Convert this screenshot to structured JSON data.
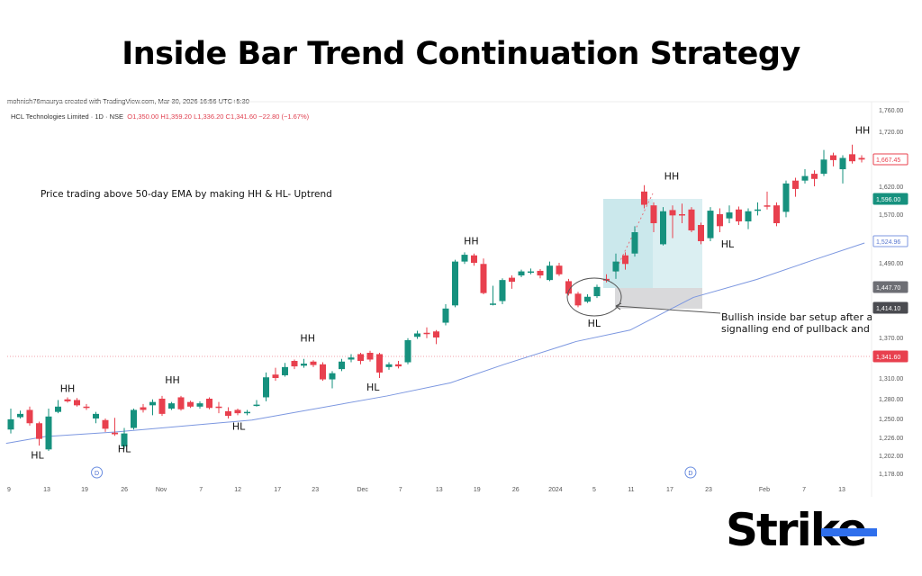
{
  "title": "Inside Bar Trend Continuation Strategy",
  "credit": "mohnish76maurya created with TradingView.com, Mar 30, 2026 16:56 UTC+5:30",
  "legend": {
    "symbol": "HCL Technologies Limited · 1D · NSE",
    "o": "O1,350.00",
    "h": "H1,359.20",
    "l": "L1,336.20",
    "c": "C1,341.60",
    "chg": "−22.80 (−1.67%)"
  },
  "logo": {
    "text": "Strike",
    "accent": "#2f6fec"
  },
  "colors": {
    "up": "#16917e",
    "down": "#e8404e",
    "ema": "#7c97e0",
    "zone": "#cfe9ee",
    "stop": "#d9d9db"
  },
  "chart_data": {
    "type": "candlestick",
    "title": "HCL Technologies Limited · 1D · NSE",
    "y_ticks": [
      1760,
      1720,
      1620,
      1570,
      1490,
      1370,
      1310,
      1280,
      1250,
      1226,
      1202,
      1178
    ],
    "y_tick_labels": [
      "1,760.00",
      "1,720.00",
      "1,620.00",
      "1,570.00",
      "1,490.00",
      "1,370.00",
      "1,310.00",
      "1,280.00",
      "1,250.00",
      "1,226.00",
      "1,202.00",
      "1,178.00"
    ],
    "price_tags": [
      {
        "label": "1,667.45",
        "value": 1667.45,
        "style": "outline-red"
      },
      {
        "label": "1,596.00",
        "value": 1596,
        "style": "teal"
      },
      {
        "label": "1,524.96",
        "value": 1524.96,
        "style": "outline-blue"
      },
      {
        "label": "1,447.70",
        "value": 1447.7,
        "style": "grey"
      },
      {
        "label": "1,414.10",
        "value": 1414.1,
        "style": "darkgrey"
      },
      {
        "label": "1,341.60",
        "value": 1341.6,
        "style": "red"
      }
    ],
    "x_labels": [
      {
        "i": 0,
        "t": "9"
      },
      {
        "i": 4,
        "t": "13"
      },
      {
        "i": 8,
        "t": "19"
      },
      {
        "i": 12.2,
        "t": "26"
      },
      {
        "i": 16.1,
        "t": "Nov"
      },
      {
        "i": 20.3,
        "t": "7"
      },
      {
        "i": 24.2,
        "t": "12"
      },
      {
        "i": 28.4,
        "t": "17"
      },
      {
        "i": 32.4,
        "t": "23"
      },
      {
        "i": 37.4,
        "t": "Dec"
      },
      {
        "i": 41.4,
        "t": "7"
      },
      {
        "i": 45.5,
        "t": "13"
      },
      {
        "i": 49.5,
        "t": "19"
      },
      {
        "i": 53.6,
        "t": "26"
      },
      {
        "i": 57.8,
        "t": "2024"
      },
      {
        "i": 61.9,
        "t": "5"
      },
      {
        "i": 65.8,
        "t": "11"
      },
      {
        "i": 69.9,
        "t": "17"
      },
      {
        "i": 74,
        "t": "23"
      },
      {
        "i": 79.9,
        "t": "Feb"
      },
      {
        "i": 84.1,
        "t": "7"
      },
      {
        "i": 88.1,
        "t": "13"
      }
    ],
    "candles": [
      [
        1236,
        1265,
        1231,
        1249
      ],
      [
        1252,
        1262,
        1250,
        1257
      ],
      [
        1263,
        1268,
        1241,
        1244
      ],
      [
        1244,
        1246,
        1215,
        1224
      ],
      [
        1210,
        1265,
        1208,
        1253
      ],
      [
        1260,
        1278,
        1258,
        1268
      ],
      [
        1279,
        1282,
        1274,
        1276
      ],
      [
        1278,
        1281,
        1268,
        1270
      ],
      [
        1268,
        1272,
        1263,
        1267
      ],
      [
        1250,
        1260,
        1244,
        1257
      ],
      [
        1248,
        1250,
        1233,
        1237
      ],
      [
        1232,
        1251,
        1228,
        1230
      ],
      [
        1214,
        1238,
        1211,
        1231
      ],
      [
        1238,
        1265,
        1236,
        1263
      ],
      [
        1267,
        1272,
        1259,
        1263
      ],
      [
        1270,
        1279,
        1255,
        1275
      ],
      [
        1280,
        1284,
        1254,
        1257
      ],
      [
        1265,
        1275,
        1263,
        1273
      ],
      [
        1282,
        1284,
        1262,
        1264
      ],
      [
        1275,
        1277,
        1266,
        1268
      ],
      [
        1268,
        1276,
        1265,
        1273
      ],
      [
        1280,
        1282,
        1264,
        1266
      ],
      [
        1268,
        1275,
        1258,
        1267
      ],
      [
        1261,
        1267,
        1250,
        1254
      ],
      [
        1263,
        1265,
        1255,
        1258
      ],
      [
        1258,
        1263,
        1255,
        1260
      ],
      [
        1270,
        1278,
        1268,
        1271
      ],
      [
        1282,
        1318,
        1276,
        1311
      ],
      [
        1315,
        1325,
        1306,
        1310
      ],
      [
        1314,
        1332,
        1312,
        1326
      ],
      [
        1335,
        1337,
        1323,
        1327
      ],
      [
        1328,
        1338,
        1325,
        1331
      ],
      [
        1334,
        1336,
        1326,
        1329
      ],
      [
        1330,
        1333,
        1306,
        1308
      ],
      [
        1308,
        1320,
        1295,
        1317
      ],
      [
        1323,
        1338,
        1320,
        1334
      ],
      [
        1337,
        1345,
        1333,
        1340
      ],
      [
        1345,
        1347,
        1330,
        1335
      ],
      [
        1347,
        1350,
        1334,
        1337
      ],
      [
        1345,
        1347,
        1310,
        1318
      ],
      [
        1326,
        1333,
        1322,
        1330
      ],
      [
        1330,
        1335,
        1324,
        1327
      ],
      [
        1333,
        1369,
        1330,
        1366
      ],
      [
        1371,
        1380,
        1368,
        1376
      ],
      [
        1377,
        1385,
        1369,
        1375
      ],
      [
        1379,
        1381,
        1360,
        1370
      ],
      [
        1392,
        1420,
        1388,
        1413
      ],
      [
        1418,
        1495,
        1415,
        1492
      ],
      [
        1492,
        1507,
        1488,
        1503
      ],
      [
        1502,
        1505,
        1485,
        1490
      ],
      [
        1488,
        1497,
        1436,
        1438
      ],
      [
        1419,
        1450,
        1418,
        1421
      ],
      [
        1425,
        1463,
        1420,
        1460
      ],
      [
        1464,
        1468,
        1445,
        1457
      ],
      [
        1468,
        1478,
        1465,
        1475
      ],
      [
        1474,
        1480,
        1470,
        1475
      ],
      [
        1476,
        1479,
        1463,
        1468
      ],
      [
        1460,
        1492,
        1458,
        1485
      ],
      [
        1485,
        1490,
        1467,
        1470
      ],
      [
        1458,
        1462,
        1434,
        1437
      ],
      [
        1437,
        1440,
        1415,
        1418
      ],
      [
        1424,
        1436,
        1422,
        1432
      ],
      [
        1433,
        1452,
        1430,
        1448
      ],
      [
        1462,
        1470,
        1456,
        1459
      ],
      [
        1475,
        1505,
        1462,
        1492
      ],
      [
        1502,
        1507,
        1478,
        1488
      ],
      [
        1505,
        1550,
        1500,
        1540
      ],
      [
        1610,
        1622,
        1580,
        1586
      ],
      [
        1585,
        1590,
        1540,
        1555
      ],
      [
        1520,
        1582,
        1518,
        1575
      ],
      [
        1577,
        1585,
        1530,
        1568
      ],
      [
        1570,
        1588,
        1555,
        1568
      ],
      [
        1578,
        1582,
        1540,
        1543
      ],
      [
        1552,
        1556,
        1520,
        1525
      ],
      [
        1530,
        1582,
        1525,
        1576
      ],
      [
        1570,
        1580,
        1540,
        1550
      ],
      [
        1563,
        1585,
        1555,
        1573
      ],
      [
        1578,
        1583,
        1552,
        1558
      ],
      [
        1558,
        1580,
        1545,
        1575
      ],
      [
        1576,
        1590,
        1568,
        1578
      ],
      [
        1585,
        1610,
        1578,
        1583
      ],
      [
        1585,
        1590,
        1550,
        1555
      ],
      [
        1574,
        1630,
        1565,
        1625
      ],
      [
        1630,
        1635,
        1600,
        1615
      ],
      [
        1630,
        1650,
        1625,
        1638
      ],
      [
        1642,
        1648,
        1620,
        1633
      ],
      [
        1642,
        1685,
        1638,
        1667
      ],
      [
        1675,
        1680,
        1655,
        1666
      ],
      [
        1650,
        1675,
        1625,
        1670
      ],
      [
        1677,
        1695,
        1660,
        1664
      ],
      [
        1670,
        1675,
        1662,
        1667
      ]
    ],
    "ema_50": [
      [
        -0.5,
        1218
      ],
      [
        3.6,
        1227
      ],
      [
        11.2,
        1233
      ],
      [
        25.5,
        1248
      ],
      [
        39.8,
        1284
      ],
      [
        46.5,
        1303
      ],
      [
        52.2,
        1330
      ],
      [
        59.8,
        1364
      ],
      [
        65.5,
        1381
      ],
      [
        72.2,
        1431
      ],
      [
        78.9,
        1461
      ],
      [
        84.6,
        1493
      ],
      [
        90.3,
        1522
      ]
    ],
    "reference_line": 1341.6,
    "annotations": [
      {
        "t": "HL",
        "i": 2.8,
        "p": 1198
      },
      {
        "t": "HH",
        "i": 6,
        "p": 1290
      },
      {
        "t": "HH",
        "i": 17.1,
        "p": 1302
      },
      {
        "t": "HL",
        "i": 12,
        "p": 1206
      },
      {
        "t": "HL",
        "i": 24.1,
        "p": 1236
      },
      {
        "t": "HH",
        "i": 31.4,
        "p": 1364
      },
      {
        "t": "HL",
        "i": 38.3,
        "p": 1292
      },
      {
        "t": "HH",
        "i": 48.7,
        "p": 1520
      },
      {
        "t": "HL",
        "i": 61.7,
        "p": 1386
      },
      {
        "t": "HH",
        "i": 69.9,
        "p": 1632
      },
      {
        "t": "HL",
        "i": 75.8,
        "p": 1515
      },
      {
        "t": "HH",
        "i": 90.1,
        "p": 1716
      }
    ],
    "note": "Price trading above 50-day EMA by making HH & HL- Uptrend",
    "callout": [
      "Bullish inside bar setup after a",
      "signalling end of pullback and"
    ],
    "dividend_markers": [
      {
        "i": 9.1,
        "t": "D"
      },
      {
        "i": 71.9,
        "t": "D"
      }
    ]
  }
}
